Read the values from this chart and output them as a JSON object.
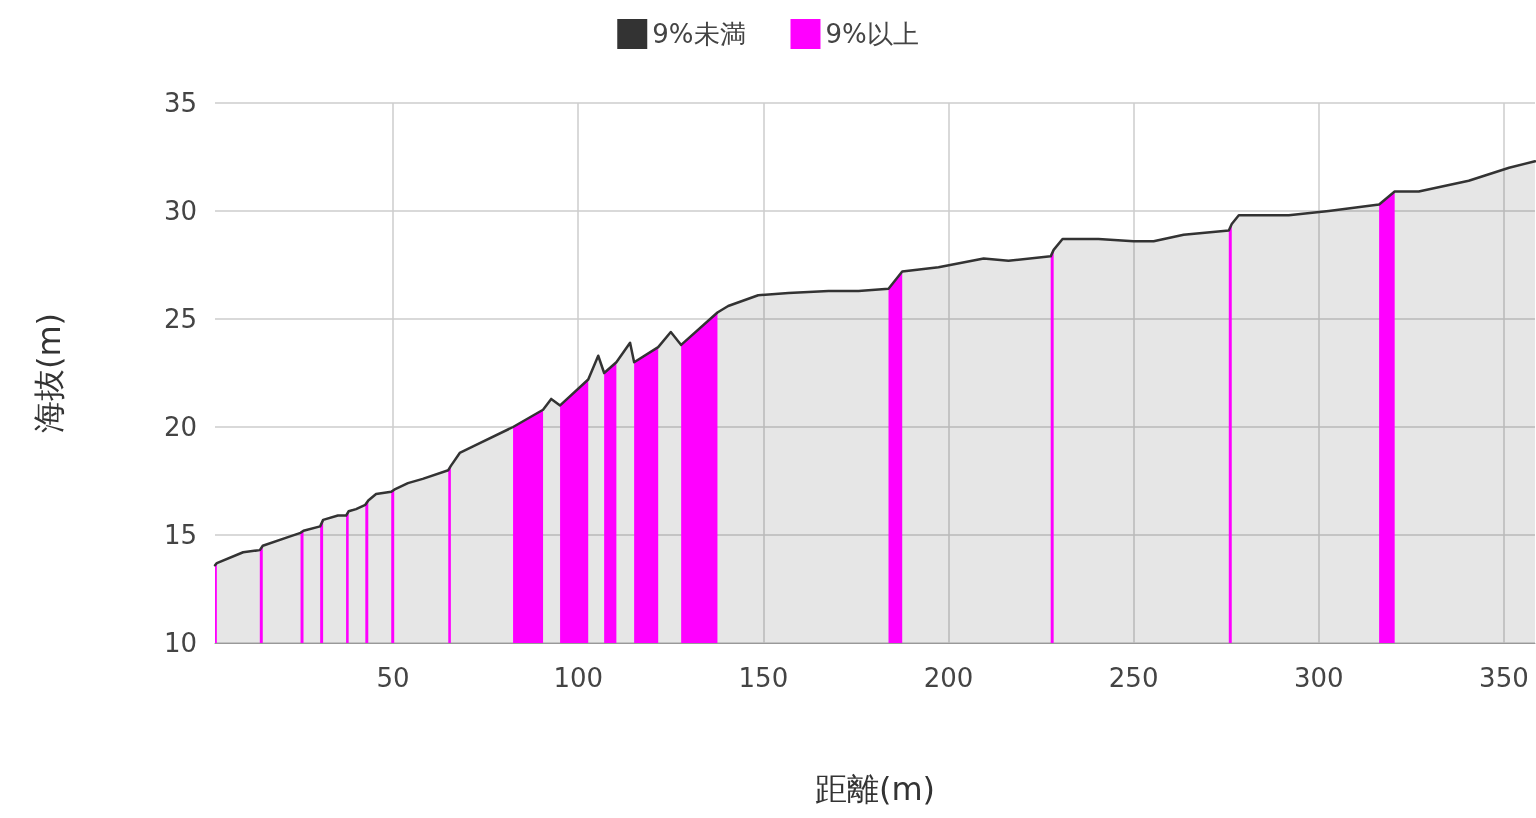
{
  "chart_data": {
    "type": "area",
    "xlabel": "距離(m)",
    "ylabel": "海抜(m)",
    "xlim": [
      1.9,
      358.4
    ],
    "xticks": [
      50,
      100,
      150,
      200,
      250,
      300,
      350
    ],
    "ylim": [
      10,
      35
    ],
    "yticks": [
      10,
      15,
      20,
      25,
      30,
      35
    ],
    "grid": true,
    "legend": "top",
    "marker": "none",
    "line_style": "solid",
    "series": [
      {
        "name": "9%未満",
        "color": "#333333",
        "x": [
          1.9,
          2.4,
          9.5,
          14,
          14.8,
          21.6,
          25,
          25.8,
          30.3,
          31.1,
          35.1,
          37.3,
          38,
          40,
          42.5,
          43.3,
          45.4,
          49.5,
          50.3,
          54,
          58,
          64.9,
          65.6,
          68,
          71.6,
          82.4,
          90.5,
          92.7,
          95.1,
          102.7,
          105.4,
          107,
          110.3,
          114,
          115.1,
          121.6,
          125,
          127.8,
          137.6,
          140.5,
          148.6,
          156.8,
          167.6,
          175.7,
          183.8,
          187.5,
          197.3,
          209.5,
          216.2,
          227.6,
          228.4,
          230.8,
          240.5,
          250,
          255.4,
          263.5,
          275.7,
          276.5,
          278.4,
          291.9,
          302.7,
          316.3,
          320.5,
          327,
          340.5,
          351.4,
          358.4
        ],
        "values": [
          13.6,
          13.7,
          14.2,
          14.3,
          14.5,
          14.9,
          15.1,
          15.2,
          15.4,
          15.7,
          15.9,
          15.9,
          16.1,
          16.2,
          16.4,
          16.6,
          16.9,
          17.0,
          17.1,
          17.4,
          17.6,
          18.0,
          18.2,
          18.8,
          19.1,
          20.0,
          20.8,
          21.3,
          21.0,
          22.2,
          23.3,
          22.5,
          23.0,
          23.9,
          23.0,
          23.7,
          24.4,
          23.8,
          25.3,
          25.6,
          26.1,
          26.2,
          26.3,
          26.3,
          26.4,
          27.2,
          27.4,
          27.8,
          27.7,
          27.9,
          28.2,
          28.7,
          28.7,
          28.6,
          28.6,
          28.9,
          29.1,
          29.4,
          29.8,
          29.8,
          30.0,
          30.3,
          30.9,
          30.9,
          31.4,
          32.0,
          32.3
        ]
      },
      {
        "name": "9%以上",
        "color": "#ff00ff",
        "x": [
          1.9,
          2.4,
          8,
          14,
          14.8,
          20,
          25,
          25.8,
          28,
          30.3,
          31.1,
          34,
          37.3,
          38,
          40,
          42.5,
          43.3,
          46,
          49.5,
          50.3,
          57,
          64.9,
          65.6,
          74,
          82.4,
          90.5,
          93,
          95.1,
          102.7,
          105,
          107,
          110.3,
          113,
          115.1,
          121.6,
          125,
          127.8,
          137.6,
          160,
          183.8,
          187.5,
          207,
          227.6,
          228.4,
          250,
          275.7,
          276.5,
          296,
          316.3,
          320.5
        ],
        "values": [
          13.6,
          13.7,
          null,
          14.3,
          14.5,
          null,
          15.1,
          15.2,
          null,
          15.4,
          15.7,
          null,
          15.9,
          16.1,
          null,
          16.4,
          16.6,
          null,
          17.0,
          17.1,
          null,
          18.0,
          18.2,
          null,
          20.0,
          20.8,
          null,
          21.0,
          22.2,
          null,
          22.5,
          23.0,
          null,
          23.0,
          23.7,
          null,
          23.8,
          25.3,
          null,
          26.4,
          27.2,
          null,
          27.9,
          28.2,
          null,
          29.1,
          29.4,
          null,
          30.3,
          30.9
        ]
      }
    ]
  }
}
